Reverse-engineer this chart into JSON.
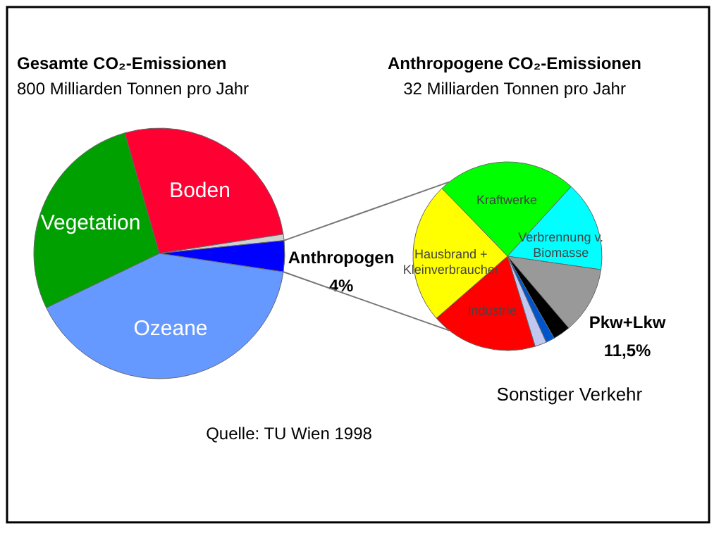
{
  "chart_data": [
    {
      "type": "pie",
      "title": "Gesamte CO₂-Emissionen",
      "subtitle": "800 Milliarden Tonnen pro Jahr",
      "categories": [
        "Boden",
        null,
        "Anthropogen",
        "Ozeane",
        "Vegetation"
      ],
      "values": [
        27,
        0.8,
        4,
        40.5,
        27.7
      ],
      "colors": [
        "#ff0033",
        "#d0d0d0",
        "#0000ff",
        "#6699ff",
        "#00a000"
      ],
      "value_labels": [
        null,
        null,
        "4%",
        null,
        null
      ],
      "annotations": [
        "Quelle: TU Wien 1998"
      ]
    },
    {
      "type": "pie",
      "title": "Anthropogene CO₂-Emissionen",
      "subtitle": "32 Milliarden Tonnen pro Jahr",
      "categories": [
        "Kraftwerke",
        "Verbrennung v.\nBiomasse",
        "Pkw+Lkw",
        null,
        "Sonstiger Verkehr",
        null,
        "Industrie",
        "Hausbrand +\nKleinverbraucher"
      ],
      "values": [
        24,
        15.5,
        11.5,
        3,
        1.5,
        2,
        18.3,
        24.2
      ],
      "colors": [
        "#00ff00",
        "#00ffff",
        "#999999",
        "#000000",
        "#0055cc",
        "#c0c8f0",
        "#ff0000",
        "#ffff00"
      ],
      "value_labels": [
        null,
        null,
        "11,5%",
        null,
        null,
        null,
        null,
        null
      ]
    }
  ]
}
